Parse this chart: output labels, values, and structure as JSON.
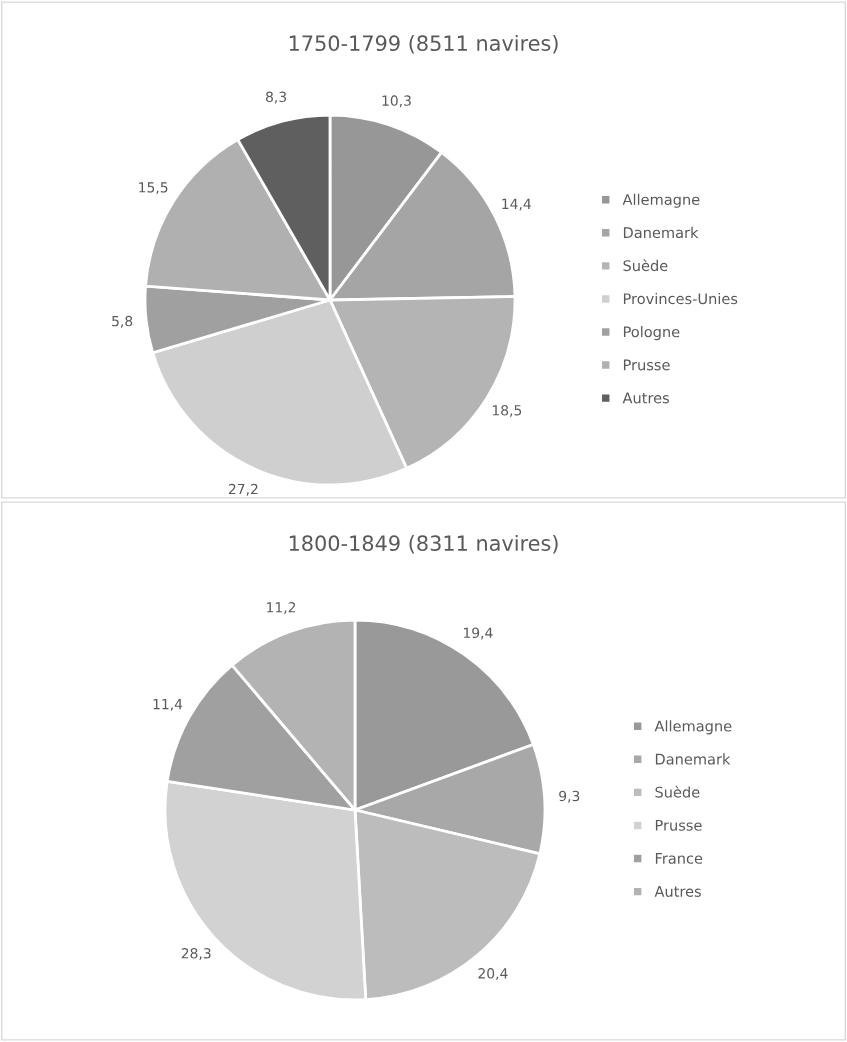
{
  "chart_data": [
    {
      "type": "pie",
      "title": "1750-1799 (8511 navires)",
      "categories": [
        "Allemagne",
        "Danemark",
        "Suède",
        "Provinces-Unies",
        "Pologne",
        "Prusse",
        "Autres"
      ],
      "values": [
        10.3,
        14.4,
        18.5,
        27.2,
        5.8,
        15.5,
        8.3
      ],
      "colors": [
        "#979797",
        "#a5a5a5",
        "#b4b4b4",
        "#cfcfcf",
        "#a0a0a0",
        "#b0b0b0",
        "#5f5f5f"
      ],
      "value_labels": [
        "10,3",
        "14,4",
        "18,5",
        "27,2",
        "5,8",
        "15,5",
        "8,3"
      ],
      "legend": "right"
    },
    {
      "type": "pie",
      "title": "1800-1849 (8311 navires)",
      "categories": [
        "Allemagne",
        "Danemark",
        "Suède",
        "Prusse",
        "France",
        "Autres"
      ],
      "values": [
        19.4,
        9.3,
        20.4,
        28.3,
        11.4,
        11.2
      ],
      "colors": [
        "#999999",
        "#a8a8a8",
        "#bcbcbc",
        "#d2d2d2",
        "#a0a0a0",
        "#b3b3b3"
      ],
      "value_labels": [
        "19,4",
        "9,3",
        "20,4",
        "28,3",
        "11,4",
        "11,2"
      ],
      "legend": "right"
    }
  ]
}
